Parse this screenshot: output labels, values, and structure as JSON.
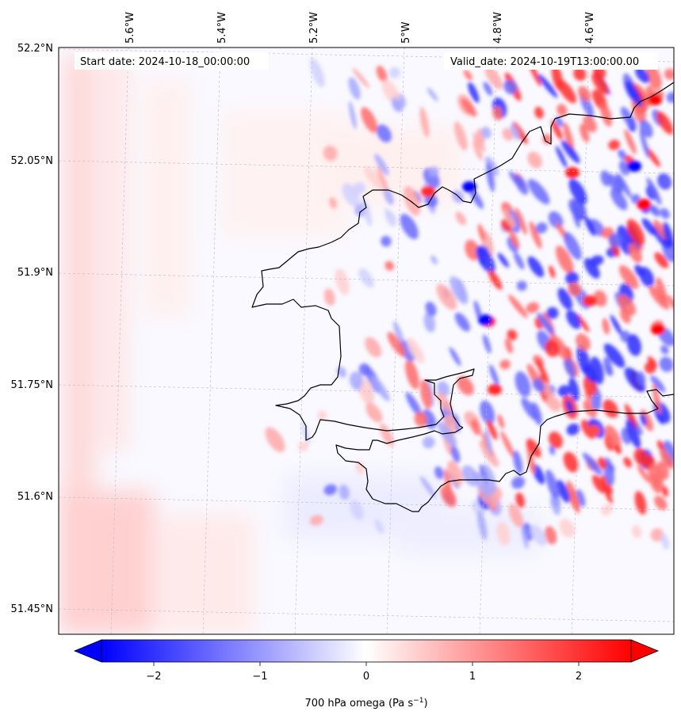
{
  "header": {
    "start_date": "Start date: 2024-10-18_00:00:00",
    "valid_date": "Valid_date: 2024-10-19T13:00:00.00"
  },
  "map": {
    "lon_labels": [
      "5.6°W",
      "5.4°W",
      "5.2°W",
      "5°W",
      "4.8°W",
      "4.6°W"
    ],
    "lat_labels": [
      "52.2°N",
      "52.05°N",
      "51.9°N",
      "51.75°N",
      "51.6°N",
      "51.45°N"
    ],
    "field": "700 hPa omega",
    "colors": {
      "negative": "#0000ff",
      "zero": "#ffffff",
      "positive": "#ff0000",
      "coastline": "#000000",
      "gridline": "#b0b0c8"
    }
  },
  "colorbar": {
    "ticks": [
      "−2",
      "−1",
      "0",
      "1",
      "2"
    ],
    "label_main": "700 hPa omega (Pa s",
    "label_sup": "−1",
    "label_end": ")",
    "range": [
      -2.75,
      2.75
    ]
  }
}
